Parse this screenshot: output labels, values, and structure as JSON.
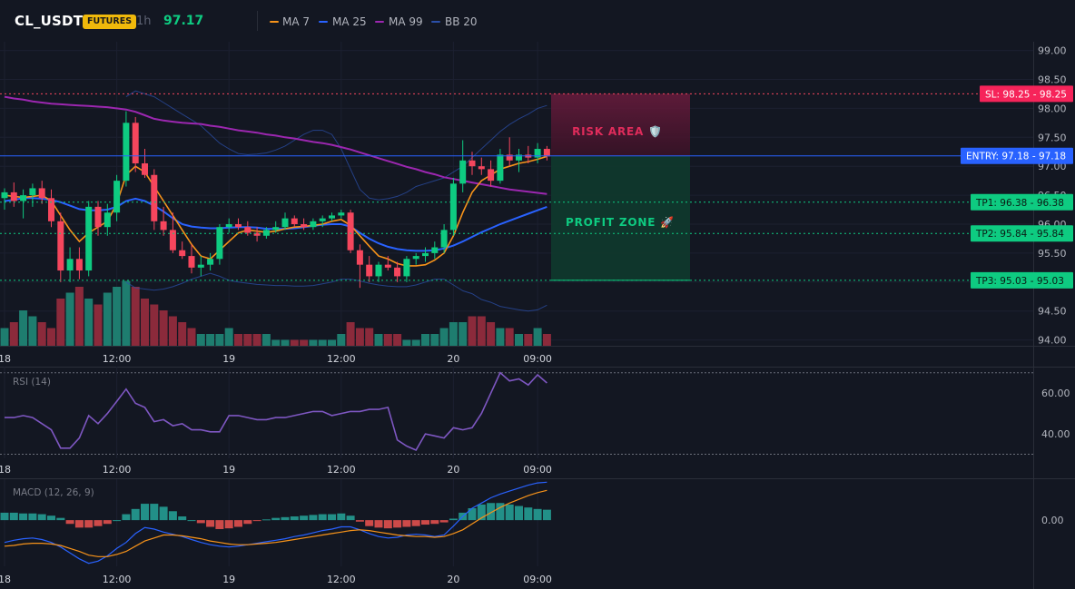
{
  "header": {
    "symbol": "CL_USDT",
    "badge": "FUTURES",
    "timeframe": "1h",
    "last_price": "97.17"
  },
  "indicators": [
    {
      "label": "MA 7",
      "color": "#f7931a"
    },
    {
      "label": "MA 25",
      "color": "#2962ff"
    },
    {
      "label": "MA 99",
      "color": "#9c27b0"
    },
    {
      "label": "BB 20",
      "color": "#1e3a8a"
    }
  ],
  "colors": {
    "up": "#0ecb81",
    "down": "#f6465d",
    "vol_up": "#1e7d6f",
    "vol_down": "#8b2a3b",
    "rsi": "#7e57c2",
    "macd_line": "#2962ff",
    "signal_line": "#f7931a",
    "hist_pos": "#26a69a",
    "hist_neg": "#ef5350",
    "entry": "#2962ff",
    "sl": "#f6465d",
    "tp": "#0ecb81"
  },
  "trade_levels": {
    "sl": {
      "label": "SL: 98.25",
      "value": 98.25,
      "axis": "98.25"
    },
    "entry": {
      "label": "ENTRY: 97.18",
      "value": 97.18,
      "axis": "97.18"
    },
    "tp1": {
      "label": "TP1: 96.38",
      "value": 96.38,
      "axis": "96.38"
    },
    "tp2": {
      "label": "TP2: 95.84",
      "value": 95.84,
      "axis": "95.84"
    },
    "tp3": {
      "label": "TP3: 95.03",
      "value": 95.03,
      "axis": "95.03"
    }
  },
  "zones": {
    "risk_label": "RISK AREA 🛡️",
    "profit_label": "PROFIT ZONE 🚀"
  },
  "chart_data": [
    {
      "type": "candlestick",
      "y_ticks": [
        "99.00",
        "98.50",
        "98.00",
        "97.50",
        "97.00",
        "96.50",
        "96.00",
        "95.50",
        "95.00",
        "94.50",
        "94.00"
      ],
      "ylim": [
        93.9,
        99.15
      ],
      "x_tick_labels": [
        {
          "label": "18",
          "bar": 0
        },
        {
          "label": "12:00",
          "bar": 12
        },
        {
          "label": "19",
          "bar": 24
        },
        {
          "label": "12:00",
          "bar": 36
        },
        {
          "label": "20",
          "bar": 48
        },
        {
          "label": "09:00",
          "bar": 57
        }
      ],
      "candles": [
        [
          96.45,
          96.62,
          96.25,
          96.55
        ],
        [
          96.55,
          96.72,
          96.3,
          96.4
        ],
        [
          96.4,
          96.6,
          96.1,
          96.5
        ],
        [
          96.5,
          96.7,
          96.3,
          96.62
        ],
        [
          96.62,
          96.75,
          96.35,
          96.45
        ],
        [
          96.45,
          96.6,
          95.95,
          96.05
        ],
        [
          96.05,
          96.2,
          95.0,
          95.2
        ],
        [
          95.2,
          95.6,
          95.0,
          95.4
        ],
        [
          95.4,
          95.6,
          95.05,
          95.2
        ],
        [
          95.2,
          96.4,
          95.1,
          96.3
        ],
        [
          96.3,
          96.4,
          95.8,
          95.95
        ],
        [
          95.95,
          96.35,
          95.8,
          96.2
        ],
        [
          96.2,
          96.85,
          96.05,
          96.75
        ],
        [
          96.75,
          97.95,
          96.65,
          97.75
        ],
        [
          97.75,
          97.85,
          96.9,
          97.05
        ],
        [
          97.05,
          97.3,
          96.8,
          96.85
        ],
        [
          96.85,
          96.95,
          95.9,
          96.05
        ],
        [
          96.05,
          96.3,
          95.8,
          95.9
        ],
        [
          95.9,
          96.2,
          95.5,
          95.55
        ],
        [
          95.55,
          95.7,
          95.4,
          95.45
        ],
        [
          95.45,
          95.65,
          95.15,
          95.25
        ],
        [
          95.25,
          95.45,
          95.1,
          95.3
        ],
        [
          95.3,
          95.5,
          95.2,
          95.4
        ],
        [
          95.4,
          96.0,
          95.3,
          95.95
        ],
        [
          95.95,
          96.1,
          95.85,
          96.0
        ],
        [
          96.0,
          96.1,
          95.9,
          95.95
        ],
        [
          95.95,
          96.05,
          95.8,
          95.85
        ],
        [
          95.85,
          95.95,
          95.7,
          95.8
        ],
        [
          95.8,
          95.95,
          95.75,
          95.9
        ],
        [
          95.9,
          96.05,
          95.85,
          95.95
        ],
        [
          95.95,
          96.2,
          95.9,
          96.1
        ],
        [
          96.1,
          96.15,
          95.95,
          96.0
        ],
        [
          96.0,
          96.1,
          95.9,
          95.95
        ],
        [
          95.95,
          96.1,
          95.9,
          96.05
        ],
        [
          96.05,
          96.15,
          95.95,
          96.1
        ],
        [
          96.1,
          96.2,
          96.05,
          96.15
        ],
        [
          96.15,
          96.25,
          96.1,
          96.2
        ],
        [
          96.2,
          96.25,
          95.5,
          95.55
        ],
        [
          95.55,
          95.65,
          94.9,
          95.3
        ],
        [
          95.3,
          95.45,
          95.0,
          95.1
        ],
        [
          95.1,
          95.35,
          95.0,
          95.3
        ],
        [
          95.3,
          95.45,
          95.2,
          95.25
        ],
        [
          95.25,
          95.35,
          95.0,
          95.1
        ],
        [
          95.1,
          95.45,
          95.0,
          95.4
        ],
        [
          95.4,
          95.5,
          95.3,
          95.45
        ],
        [
          95.45,
          95.6,
          95.35,
          95.5
        ],
        [
          95.5,
          95.7,
          95.4,
          95.6
        ],
        [
          95.6,
          96.0,
          95.5,
          95.9
        ],
        [
          95.9,
          96.8,
          95.8,
          96.7
        ],
        [
          96.7,
          97.45,
          96.55,
          97.1
        ],
        [
          97.1,
          97.25,
          96.85,
          97.0
        ],
        [
          97.0,
          97.15,
          96.85,
          96.95
        ],
        [
          96.95,
          97.1,
          96.65,
          96.75
        ],
        [
          96.75,
          97.3,
          96.7,
          97.2
        ],
        [
          97.2,
          97.5,
          97.0,
          97.1
        ],
        [
          97.1,
          97.3,
          96.9,
          97.2
        ],
        [
          97.2,
          97.35,
          97.05,
          97.15
        ],
        [
          97.15,
          97.4,
          97.05,
          97.3
        ],
        [
          97.3,
          97.35,
          97.1,
          97.17
        ]
      ],
      "volume": [
        3,
        4,
        6,
        5,
        4,
        3,
        8,
        9,
        10,
        8,
        7,
        9,
        10,
        11,
        10,
        8,
        7,
        6,
        5,
        4,
        3,
        2,
        2,
        2,
        3,
        2,
        2,
        2,
        2,
        1,
        1,
        1,
        1,
        1,
        1,
        1,
        2,
        4,
        3,
        3,
        2,
        2,
        2,
        1,
        1,
        2,
        2,
        3,
        4,
        4,
        5,
        5,
        4,
        3,
        3,
        2,
        2,
        3,
        2
      ],
      "ma7": [
        96.5,
        96.48,
        96.46,
        96.48,
        96.5,
        96.4,
        96.15,
        95.9,
        95.7,
        95.85,
        95.95,
        96.05,
        96.35,
        96.85,
        97.0,
        96.9,
        96.65,
        96.4,
        96.15,
        95.9,
        95.65,
        95.45,
        95.4,
        95.55,
        95.7,
        95.85,
        95.9,
        95.88,
        95.86,
        95.88,
        95.92,
        95.95,
        95.96,
        95.98,
        96.0,
        96.05,
        96.08,
        95.98,
        95.8,
        95.62,
        95.45,
        95.4,
        95.32,
        95.28,
        95.28,
        95.3,
        95.38,
        95.5,
        95.8,
        96.2,
        96.55,
        96.75,
        96.85,
        96.95,
        97.0,
        97.05,
        97.08,
        97.12,
        97.17
      ],
      "ma25": [
        96.4,
        96.42,
        96.45,
        96.45,
        96.44,
        96.42,
        96.38,
        96.32,
        96.26,
        96.24,
        96.24,
        96.25,
        96.3,
        96.4,
        96.44,
        96.4,
        96.32,
        96.22,
        96.1,
        96.0,
        95.96,
        95.94,
        95.93,
        95.93,
        95.94,
        95.95,
        95.95,
        95.94,
        95.92,
        95.92,
        95.92,
        95.93,
        95.95,
        95.97,
        95.99,
        96.0,
        96.0,
        95.96,
        95.85,
        95.75,
        95.67,
        95.61,
        95.57,
        95.55,
        95.54,
        95.54,
        95.55,
        95.58,
        95.63,
        95.7,
        95.78,
        95.86,
        95.93,
        96.0,
        96.06,
        96.12,
        96.18,
        96.24,
        96.3
      ],
      "ma99": [
        98.2,
        98.17,
        98.15,
        98.12,
        98.1,
        98.08,
        98.07,
        98.06,
        98.05,
        98.04,
        98.03,
        98.02,
        98.0,
        97.98,
        97.94,
        97.88,
        97.82,
        97.79,
        97.77,
        97.75,
        97.74,
        97.73,
        97.7,
        97.68,
        97.65,
        97.62,
        97.6,
        97.58,
        97.55,
        97.53,
        97.5,
        97.48,
        97.45,
        97.42,
        97.4,
        97.37,
        97.33,
        97.29,
        97.24,
        97.19,
        97.14,
        97.09,
        97.04,
        96.99,
        96.95,
        96.9,
        96.86,
        96.81,
        96.78,
        96.75,
        96.72,
        96.69,
        96.66,
        96.63,
        96.6,
        96.58,
        96.56,
        96.54,
        96.52
      ],
      "bb_upper": [
        null,
        null,
        null,
        null,
        null,
        null,
        null,
        null,
        null,
        null,
        null,
        null,
        null,
        98.2,
        98.3,
        98.25,
        98.2,
        98.1,
        98.0,
        97.9,
        97.8,
        97.7,
        97.55,
        97.4,
        97.3,
        97.22,
        97.2,
        97.21,
        97.23,
        97.28,
        97.35,
        97.45,
        97.55,
        97.62,
        97.62,
        97.55,
        97.3,
        96.95,
        96.6,
        96.45,
        96.42,
        96.44,
        96.48,
        96.55,
        96.65,
        96.7,
        96.75,
        96.8,
        96.9,
        97.0,
        97.15,
        97.3,
        97.45,
        97.6,
        97.72,
        97.82,
        97.9,
        98.0,
        98.05
      ],
      "bb_lower": [
        null,
        null,
        null,
        null,
        null,
        null,
        null,
        null,
        null,
        null,
        null,
        null,
        null,
        95.0,
        94.9,
        94.88,
        94.86,
        94.88,
        94.92,
        94.98,
        95.05,
        95.1,
        95.15,
        95.1,
        95.03,
        95.0,
        94.98,
        94.96,
        94.95,
        94.94,
        94.94,
        94.93,
        94.93,
        94.94,
        94.97,
        95.0,
        95.05,
        95.05,
        95.02,
        94.98,
        94.95,
        94.93,
        94.92,
        94.92,
        94.95,
        95.0,
        95.05,
        95.05,
        94.95,
        94.85,
        94.8,
        94.7,
        94.65,
        94.58,
        94.55,
        94.52,
        94.5,
        94.52,
        94.6
      ]
    },
    {
      "type": "line",
      "label": "RSI (14)",
      "y_ticks": [
        "60.00",
        "40.00"
      ],
      "ylim": [
        28,
        73
      ],
      "levels": [
        70,
        30
      ],
      "values": [
        48,
        48,
        49,
        48,
        45,
        42,
        33,
        33,
        38,
        49,
        45,
        50,
        56,
        62,
        55,
        53,
        46,
        47,
        44,
        45,
        42,
        42,
        41,
        41,
        49,
        49,
        48,
        47,
        47,
        48,
        48,
        49,
        50,
        51,
        51,
        49,
        50,
        51,
        51,
        52,
        52,
        53,
        37,
        34,
        32,
        40,
        39,
        38,
        43,
        42,
        43,
        50,
        60,
        70,
        66,
        67,
        64,
        69,
        65
      ]
    },
    {
      "type": "bar+line",
      "label": "MACD (12, 26, 9)",
      "y_ticks": [
        "0.00"
      ],
      "ylim": [
        -0.62,
        0.55
      ],
      "histogram": [
        0.1,
        0.1,
        0.09,
        0.09,
        0.08,
        0.06,
        0.03,
        -0.05,
        -0.1,
        -0.1,
        -0.08,
        -0.05,
        0.0,
        0.08,
        0.15,
        0.22,
        0.22,
        0.18,
        0.12,
        0.05,
        0.0,
        -0.04,
        -0.09,
        -0.12,
        -0.11,
        -0.09,
        -0.05,
        -0.01,
        0.01,
        0.03,
        0.04,
        0.05,
        0.06,
        0.07,
        0.08,
        0.08,
        0.09,
        0.06,
        -0.02,
        -0.08,
        -0.1,
        -0.11,
        -0.1,
        -0.09,
        -0.08,
        -0.06,
        -0.05,
        -0.03,
        0.02,
        0.1,
        0.16,
        0.21,
        0.23,
        0.23,
        0.21,
        0.19,
        0.17,
        0.15,
        0.14
      ],
      "macd": [
        -0.3,
        -0.27,
        -0.25,
        -0.24,
        -0.26,
        -0.3,
        -0.36,
        -0.44,
        -0.52,
        -0.58,
        -0.55,
        -0.48,
        -0.38,
        -0.3,
        -0.18,
        -0.1,
        -0.12,
        -0.16,
        -0.19,
        -0.22,
        -0.26,
        -0.3,
        -0.33,
        -0.35,
        -0.36,
        -0.35,
        -0.33,
        -0.31,
        -0.29,
        -0.27,
        -0.25,
        -0.22,
        -0.2,
        -0.17,
        -0.14,
        -0.12,
        -0.09,
        -0.09,
        -0.13,
        -0.18,
        -0.22,
        -0.24,
        -0.23,
        -0.2,
        -0.19,
        -0.2,
        -0.22,
        -0.2,
        -0.08,
        0.05,
        0.16,
        0.23,
        0.3,
        0.35,
        0.39,
        0.43,
        0.47,
        0.5,
        0.51
      ],
      "signal": [
        -0.35,
        -0.34,
        -0.32,
        -0.31,
        -0.31,
        -0.32,
        -0.34,
        -0.38,
        -0.42,
        -0.47,
        -0.49,
        -0.49,
        -0.46,
        -0.42,
        -0.35,
        -0.28,
        -0.24,
        -0.2,
        -0.2,
        -0.21,
        -0.23,
        -0.25,
        -0.28,
        -0.3,
        -0.32,
        -0.33,
        -0.33,
        -0.32,
        -0.31,
        -0.3,
        -0.28,
        -0.26,
        -0.24,
        -0.22,
        -0.2,
        -0.18,
        -0.16,
        -0.14,
        -0.13,
        -0.14,
        -0.16,
        -0.18,
        -0.2,
        -0.21,
        -0.22,
        -0.22,
        -0.23,
        -0.22,
        -0.18,
        -0.13,
        -0.05,
        0.03,
        0.1,
        0.17,
        0.23,
        0.28,
        0.33,
        0.37,
        0.4
      ]
    }
  ]
}
